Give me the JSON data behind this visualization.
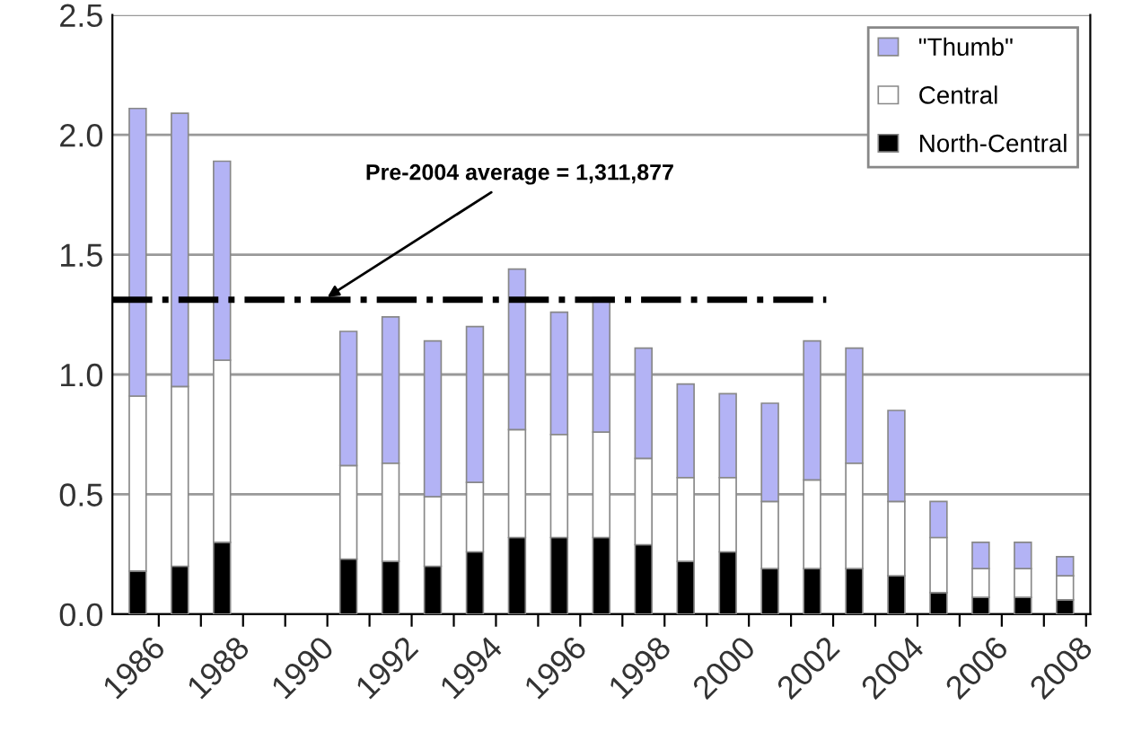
{
  "chart_data": {
    "type": "bar",
    "stacked": true,
    "categories": [
      "1986",
      null,
      "1988",
      null,
      "1990",
      null,
      "1992",
      null,
      "1994",
      null,
      "1996",
      null,
      "1998",
      null,
      "2000",
      null,
      "2002",
      null,
      "2004",
      null,
      "2006",
      null,
      "2008"
    ],
    "series": [
      {
        "name": "North-Central",
        "color": "#000000",
        "values": [
          0.18,
          0.2,
          0.3,
          null,
          null,
          0.23,
          0.22,
          0.2,
          0.26,
          0.32,
          0.32,
          0.32,
          0.29,
          0.22,
          0.26,
          0.19,
          0.19,
          0.19,
          0.16,
          0.09,
          0.07,
          0.07,
          0.06
        ]
      },
      {
        "name": "Central",
        "color": "#ffffff",
        "values": [
          0.73,
          0.75,
          0.76,
          null,
          null,
          0.39,
          0.41,
          0.29,
          0.29,
          0.45,
          0.43,
          0.44,
          0.36,
          0.35,
          0.31,
          0.28,
          0.37,
          0.44,
          0.31,
          0.23,
          0.12,
          0.12,
          0.1
        ]
      },
      {
        "name": "\"Thumb\"",
        "color": "#b3b3f5",
        "values": [
          1.2,
          1.14,
          0.83,
          null,
          null,
          0.56,
          0.61,
          0.65,
          0.65,
          0.67,
          0.51,
          0.56,
          0.46,
          0.39,
          0.35,
          0.41,
          0.58,
          0.48,
          0.38,
          0.15,
          0.11,
          0.11,
          0.08
        ]
      }
    ],
    "ylim": [
      0,
      2.5
    ],
    "yticks": [
      {
        "value": 0,
        "label": "0.0"
      },
      {
        "value": 0.5,
        "label": "0.5"
      },
      {
        "value": 1.0,
        "label": "1.0"
      },
      {
        "value": 1.5,
        "label": "1.5"
      },
      {
        "value": 2.0,
        "label": "2.0"
      },
      {
        "value": 2.5,
        "label": "2.5"
      }
    ],
    "ref_lines": [
      {
        "axis": "y",
        "value": 1.311877,
        "label": "Pre-2004 average = 1,311,877",
        "color": "#000000",
        "line_style": "dashdot"
      }
    ],
    "grid": "y",
    "legend": "top right"
  }
}
